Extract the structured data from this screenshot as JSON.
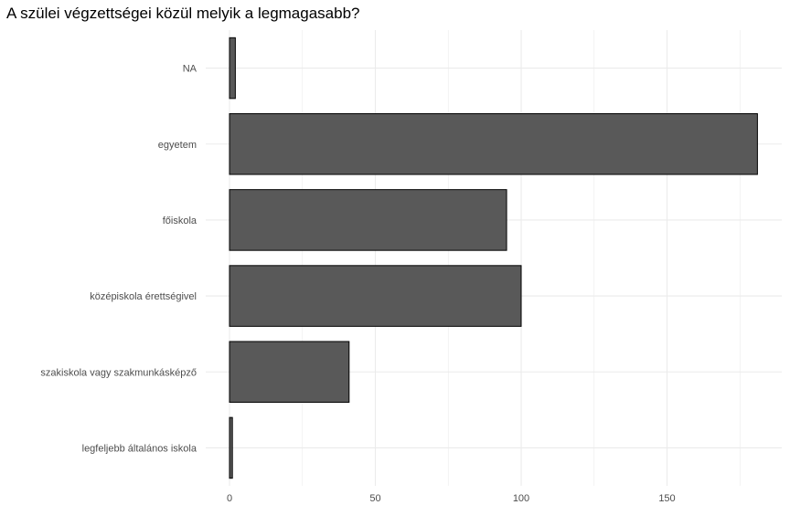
{
  "chart_data": {
    "type": "bar",
    "orientation": "horizontal",
    "title": "A szülei végzettségei közül melyik a legmagasabb?",
    "xlabel": "",
    "ylabel": "",
    "categories": [
      "NA",
      "egyetem",
      "főiskola",
      "középiskola érettségivel",
      "szakiskola vagy szakmunkásképző",
      "legfeljebb általános iskola"
    ],
    "values": [
      2,
      181,
      95,
      100,
      41,
      1
    ],
    "xlim": [
      0,
      190
    ],
    "xticks": [
      "0",
      "50",
      "100",
      "150"
    ],
    "grid": true,
    "bar_color": "#595959",
    "bar_stroke": "#000000",
    "grid_color": "#ebebeb"
  }
}
